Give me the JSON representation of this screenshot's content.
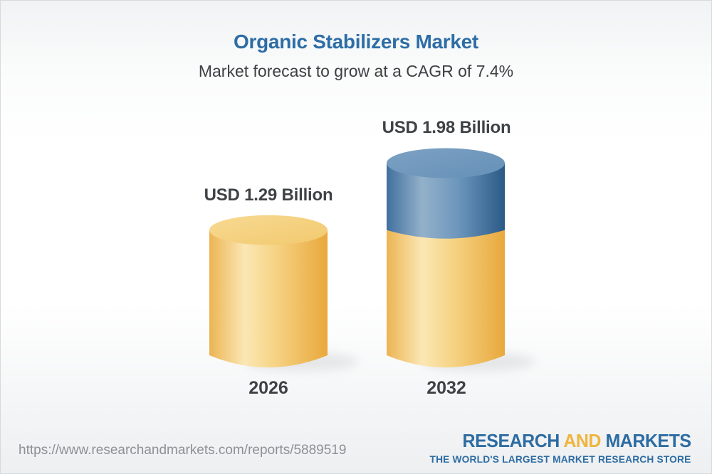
{
  "header": {
    "title": "Organic Stabilizers Market",
    "subtitle": "Market forecast to grow at a CAGR of 7.4%"
  },
  "chart_data": {
    "type": "bar",
    "variant": "3d-cylinder",
    "categories": [
      "2026",
      "2032"
    ],
    "values": [
      1.29,
      1.98
    ],
    "unit": "USD Billion",
    "value_labels": [
      "USD 1.29 Billion",
      "USD 1.98 Billion"
    ],
    "cagr_percent": 7.4,
    "ylim": [
      0,
      2.2
    ],
    "grid": false,
    "legend": "none",
    "colors": {
      "base_segment": "#F0BC55",
      "growth_segment": "#5585AF",
      "label_text": "#3E4245"
    }
  },
  "footer": {
    "url": "https://www.researchandmarkets.com/reports/5889519",
    "logo": {
      "word1": "RESEARCH",
      "word2": "AND",
      "word3": "MARKETS",
      "tagline": "THE WORLD'S LARGEST MARKET RESEARCH STORE",
      "blue": "#2D6CA2",
      "gold": "#EFB53F"
    }
  },
  "colors": {
    "title_blue": "#2D6DA6",
    "subtitle_gray": "#3D4043",
    "url_gray": "#8E9094"
  }
}
